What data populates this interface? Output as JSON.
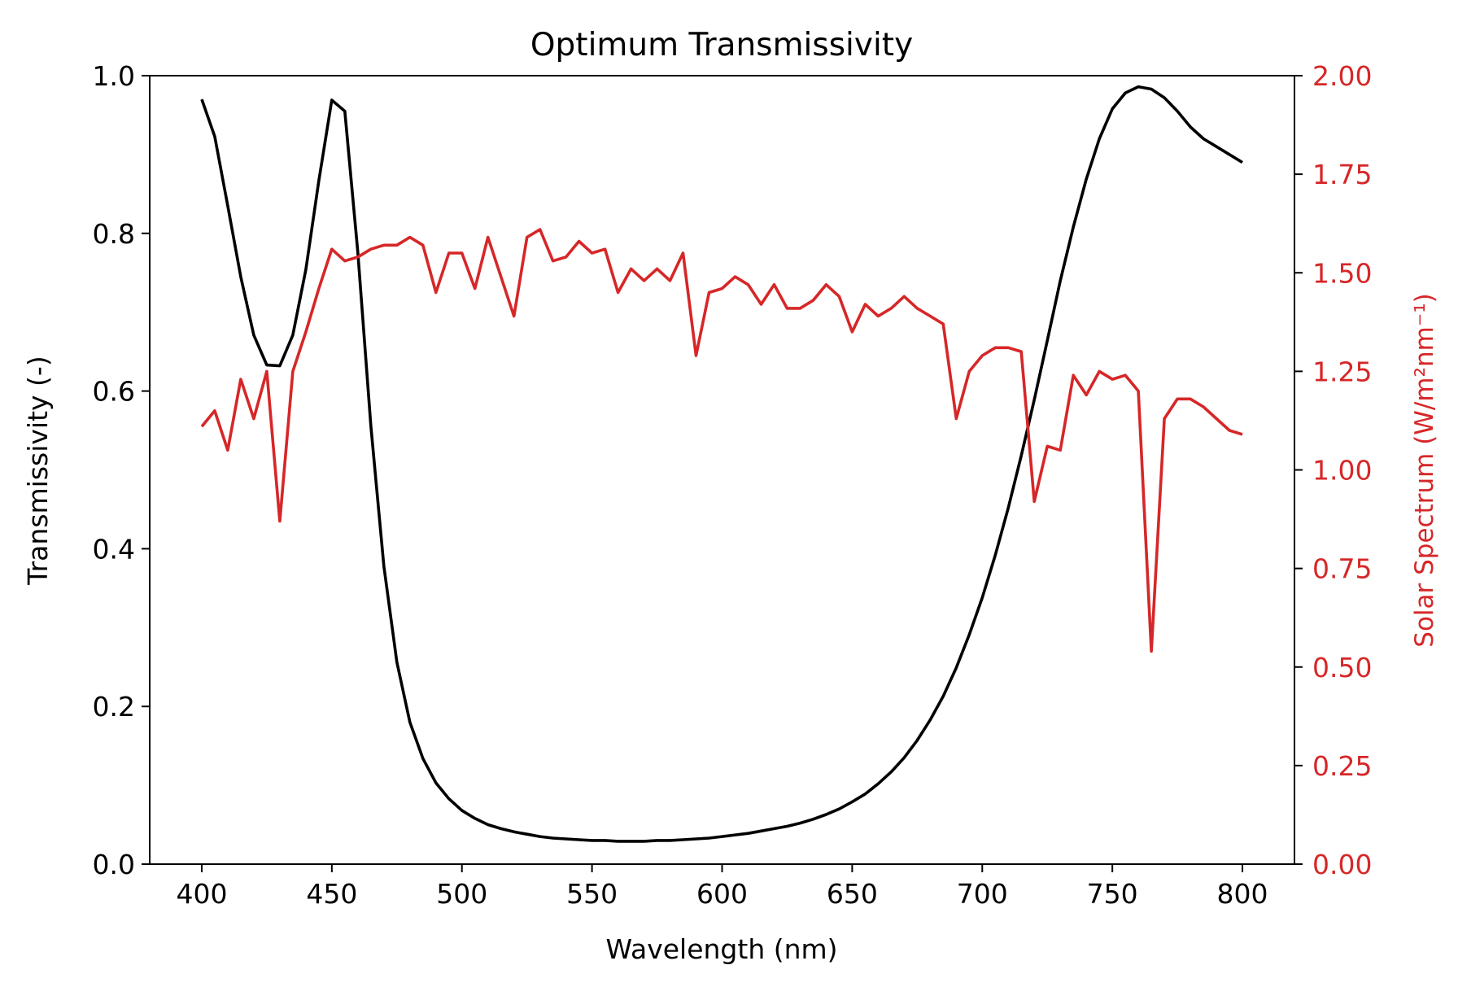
{
  "chart_data": {
    "type": "line",
    "title": "Optimum Transmissivity",
    "xlabel": "Wavelength (nm)",
    "ylabel_left": "Transmissivity (-)",
    "ylabel_right": "Solar Spectrum (W/m²nm⁻¹)",
    "xlim": [
      380,
      820
    ],
    "ylim_left": [
      0,
      1.0
    ],
    "ylim_right": [
      0,
      2.0
    ],
    "x_ticks": [
      400,
      450,
      500,
      550,
      600,
      650,
      700,
      750,
      800
    ],
    "x_tick_labels": [
      "400",
      "450",
      "500",
      "550",
      "600",
      "650",
      "700",
      "750",
      "800"
    ],
    "y_left_ticks": [
      0,
      0.2,
      0.4,
      0.6,
      0.8,
      1.0
    ],
    "y_left_tick_labels": [
      "0.0",
      "0.2",
      "0.4",
      "0.6",
      "0.8",
      "1.0"
    ],
    "y_right_ticks": [
      0,
      0.25,
      0.5,
      0.75,
      1.0,
      1.25,
      1.5,
      1.75,
      2.0
    ],
    "y_right_tick_labels": [
      "0.00",
      "0.25",
      "0.50",
      "0.75",
      "1.00",
      "1.25",
      "1.50",
      "1.75",
      "2.00"
    ],
    "grid": false,
    "colors": {
      "transmissivity": "#000000",
      "solar": "#d62728"
    },
    "series": [
      {
        "axis": "left",
        "x": [
          400,
          405,
          410,
          415,
          420,
          425,
          430,
          435,
          440,
          445,
          450,
          455,
          460,
          465,
          470,
          475,
          480,
          485,
          490,
          495,
          500,
          505,
          510,
          515,
          520,
          525,
          530,
          535,
          540,
          545,
          550,
          555,
          560,
          565,
          570,
          575,
          580,
          585,
          590,
          595,
          600,
          605,
          610,
          615,
          620,
          625,
          630,
          635,
          640,
          645,
          650,
          655,
          660,
          665,
          670,
          675,
          680,
          685,
          690,
          695,
          700,
          705,
          710,
          715,
          720,
          725,
          730,
          735,
          740,
          745,
          750,
          755,
          760,
          765,
          770,
          775,
          780,
          785,
          790,
          795,
          800
        ],
        "values": [
          0.97,
          0.923,
          0.835,
          0.745,
          0.671,
          0.633,
          0.632,
          0.671,
          0.754,
          0.867,
          0.969,
          0.955,
          0.776,
          0.556,
          0.378,
          0.256,
          0.18,
          0.134,
          0.103,
          0.083,
          0.068,
          0.058,
          0.05,
          0.045,
          0.041,
          0.038,
          0.035,
          0.033,
          0.032,
          0.031,
          0.03,
          0.03,
          0.029,
          0.029,
          0.029,
          0.03,
          0.03,
          0.031,
          0.032,
          0.033,
          0.035,
          0.037,
          0.039,
          0.042,
          0.045,
          0.048,
          0.052,
          0.057,
          0.063,
          0.07,
          0.079,
          0.089,
          0.102,
          0.117,
          0.135,
          0.157,
          0.183,
          0.213,
          0.249,
          0.291,
          0.338,
          0.392,
          0.452,
          0.518,
          0.589,
          0.664,
          0.74,
          0.808,
          0.869,
          0.92,
          0.958,
          0.978,
          0.986,
          0.983,
          0.972,
          0.955,
          0.935,
          0.92,
          0.91,
          0.9,
          0.89
        ]
      },
      {
        "axis": "right",
        "x": [
          400,
          405,
          410,
          415,
          420,
          425,
          430,
          435,
          440,
          445,
          450,
          455,
          460,
          465,
          470,
          475,
          480,
          485,
          490,
          495,
          500,
          505,
          510,
          515,
          520,
          525,
          530,
          535,
          540,
          545,
          550,
          555,
          560,
          565,
          570,
          575,
          580,
          585,
          590,
          595,
          600,
          605,
          610,
          615,
          620,
          625,
          630,
          635,
          640,
          645,
          650,
          655,
          660,
          665,
          670,
          675,
          680,
          685,
          690,
          695,
          700,
          705,
          710,
          715,
          720,
          725,
          730,
          735,
          740,
          745,
          750,
          755,
          760,
          765,
          770,
          775,
          780,
          785,
          790,
          795,
          800
        ],
        "values": [
          1.11,
          1.15,
          1.05,
          1.23,
          1.13,
          1.25,
          0.87,
          1.25,
          1.35,
          1.46,
          1.56,
          1.53,
          1.54,
          1.56,
          1.57,
          1.57,
          1.59,
          1.57,
          1.45,
          1.55,
          1.55,
          1.46,
          1.59,
          1.49,
          1.39,
          1.59,
          1.61,
          1.53,
          1.54,
          1.58,
          1.55,
          1.56,
          1.45,
          1.51,
          1.48,
          1.51,
          1.48,
          1.55,
          1.29,
          1.45,
          1.46,
          1.49,
          1.47,
          1.42,
          1.47,
          1.41,
          1.41,
          1.43,
          1.47,
          1.44,
          1.35,
          1.42,
          1.39,
          1.41,
          1.44,
          1.41,
          1.39,
          1.37,
          1.13,
          1.25,
          1.29,
          1.31,
          1.31,
          1.3,
          0.92,
          1.06,
          1.05,
          1.24,
          1.19,
          1.25,
          1.23,
          1.24,
          1.2,
          0.54,
          1.13,
          1.18,
          1.18,
          1.16,
          1.13,
          1.1,
          1.09
        ]
      }
    ]
  }
}
